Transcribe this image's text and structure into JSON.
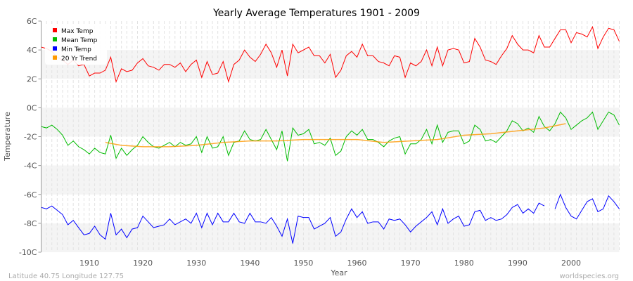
{
  "chart_data": {
    "type": "line",
    "title": "Yearly Average Temperatures 1901 - 2009",
    "xlabel": "Year",
    "ylabel": "Temperature",
    "xlim": [
      1901,
      2009
    ],
    "ylim": [
      -10,
      6
    ],
    "x_ticks": [
      1910,
      1920,
      1930,
      1940,
      1950,
      1960,
      1970,
      1980,
      1990,
      2000
    ],
    "y_ticks": [
      {
        "value": 6,
        "label": "6C"
      },
      {
        "value": 4,
        "label": "4C"
      },
      {
        "value": 2,
        "label": "2C"
      },
      {
        "value": 0,
        "label": "0C"
      },
      {
        "value": -2,
        "label": "-2C"
      },
      {
        "value": -4,
        "label": "-4C"
      },
      {
        "value": -6,
        "label": "-6C"
      },
      {
        "value": -8,
        "label": "-8C"
      },
      {
        "value": -10,
        "label": "-10C"
      }
    ],
    "grid": true,
    "legend_position": "top-left",
    "x_start": 1901,
    "series": [
      {
        "name": "Max Temp",
        "color": "#ff0000",
        "values": [
          4.2,
          4.1,
          3.9,
          3.5,
          3.3,
          3.0,
          3.3,
          2.9,
          3.0,
          2.2,
          2.4,
          2.4,
          2.6,
          3.5,
          1.8,
          2.7,
          2.5,
          2.6,
          3.1,
          3.4,
          2.9,
          2.8,
          2.6,
          3.0,
          3.0,
          2.8,
          3.1,
          2.5,
          3.0,
          3.3,
          2.1,
          3.2,
          2.3,
          2.4,
          3.2,
          1.8,
          3.0,
          3.3,
          4.0,
          3.5,
          3.2,
          3.7,
          4.4,
          3.8,
          2.8,
          4.0,
          2.2,
          4.4,
          3.8,
          4.0,
          4.2,
          3.6,
          3.6,
          3.1,
          3.7,
          2.1,
          2.6,
          3.6,
          3.9,
          3.5,
          4.4,
          3.6,
          3.6,
          3.2,
          3.1,
          2.9,
          3.6,
          3.5,
          2.1,
          3.1,
          2.9,
          3.2,
          4.0,
          2.9,
          4.2,
          2.9,
          4.0,
          4.1,
          4.0,
          3.1,
          3.2,
          4.8,
          4.2,
          3.3,
          3.2,
          3.0,
          3.6,
          4.1,
          5.0,
          4.4,
          4.0,
          4.0,
          3.8,
          5.0,
          4.2,
          4.2,
          4.8,
          5.4,
          5.4,
          4.5,
          5.2,
          5.1,
          4.9,
          5.6,
          4.1,
          4.9,
          5.5,
          5.4,
          4.6
        ]
      },
      {
        "name": "Mean Temp",
        "color": "#00bb00",
        "values": [
          -1.3,
          -1.4,
          -1.2,
          -1.5,
          -1.9,
          -2.6,
          -2.3,
          -2.7,
          -2.9,
          -3.2,
          -2.8,
          -3.1,
          -3.2,
          -1.9,
          -3.5,
          -2.8,
          -3.3,
          -2.9,
          -2.6,
          -2.0,
          -2.4,
          -2.7,
          -2.8,
          -2.6,
          -2.4,
          -2.7,
          -2.4,
          -2.6,
          -2.5,
          -2.0,
          -3.1,
          -2.0,
          -2.8,
          -2.7,
          -2.0,
          -3.3,
          -2.4,
          -2.3,
          -1.6,
          -2.2,
          -2.3,
          -2.2,
          -1.5,
          -2.2,
          -2.9,
          -1.6,
          -3.7,
          -1.4,
          -1.9,
          -1.8,
          -1.5,
          -2.5,
          -2.4,
          -2.6,
          -2.1,
          -3.3,
          -3.0,
          -2.0,
          -1.6,
          -1.9,
          -1.5,
          -2.2,
          -2.2,
          -2.4,
          -2.7,
          -2.3,
          -2.1,
          -2.0,
          -3.2,
          -2.5,
          -2.5,
          -2.2,
          -1.5,
          -2.5,
          -1.2,
          -2.4,
          -1.7,
          -1.6,
          -1.6,
          -2.5,
          -2.3,
          -1.2,
          -1.5,
          -2.3,
          -2.2,
          -2.4,
          -2.0,
          -1.6,
          -0.9,
          -1.1,
          -1.6,
          -1.4,
          -1.7,
          -0.6,
          -1.3,
          -1.6,
          -1.1,
          -0.3,
          -0.7,
          -1.5,
          -1.2,
          -0.9,
          -0.7,
          -0.3,
          -1.5,
          -0.9,
          -0.3,
          -0.5,
          -1.2
        ]
      },
      {
        "name": "Min Temp",
        "color": "#0000ff",
        "values": [
          -6.9,
          -7.0,
          -6.8,
          -7.1,
          -7.4,
          -8.1,
          -7.8,
          -8.3,
          -8.8,
          -8.7,
          -8.2,
          -8.8,
          -9.1,
          -7.3,
          -8.8,
          -8.4,
          -9.0,
          -8.4,
          -8.3,
          -7.5,
          -7.9,
          -8.3,
          -8.2,
          -8.1,
          -7.7,
          -8.1,
          -7.9,
          -7.7,
          -8.0,
          -7.3,
          -8.3,
          -7.3,
          -8.1,
          -7.3,
          -7.9,
          -7.9,
          -7.3,
          -7.9,
          -8.0,
          -7.3,
          -7.9,
          -7.9,
          -8.0,
          -7.6,
          -8.2,
          -8.9,
          -7.7,
          -9.4,
          -7.5,
          -7.6,
          -7.6,
          -8.4,
          -8.2,
          -8.0,
          -7.6,
          -8.9,
          -8.6,
          -7.7,
          -7.0,
          -7.6,
          -7.2,
          -8.0,
          -7.9,
          -7.9,
          -8.4,
          -7.7,
          -7.8,
          -7.7,
          -8.1,
          -8.6,
          -8.2,
          -7.9,
          -7.6,
          -7.2,
          -8.1,
          -7.0,
          -8.0,
          -7.7,
          -7.5,
          -8.2,
          -8.1,
          -7.2,
          -7.1,
          -7.8,
          -7.6,
          -7.8,
          -7.7,
          -7.4,
          -6.9,
          -6.7,
          -7.3,
          -7.0,
          -7.3,
          -6.6,
          -6.8,
          null,
          -7.0,
          -6.0,
          -6.9,
          -7.5,
          -7.7,
          -7.1,
          -6.5,
          -6.3,
          -7.2,
          -7.0,
          -6.1,
          -6.5,
          -7.0
        ]
      },
      {
        "name": "20 Yr Trend",
        "color": "#ff9900",
        "points": [
          [
            1913,
            -2.4
          ],
          [
            1916,
            -2.6
          ],
          [
            1920,
            -2.7
          ],
          [
            1925,
            -2.7
          ],
          [
            1930,
            -2.6
          ],
          [
            1935,
            -2.4
          ],
          [
            1940,
            -2.3
          ],
          [
            1945,
            -2.3
          ],
          [
            1950,
            -2.2
          ],
          [
            1955,
            -2.2
          ],
          [
            1960,
            -2.2
          ],
          [
            1965,
            -2.4
          ],
          [
            1970,
            -2.3
          ],
          [
            1975,
            -2.2
          ],
          [
            1980,
            -1.9
          ],
          [
            1985,
            -1.8
          ],
          [
            1990,
            -1.6
          ],
          [
            1995,
            -1.4
          ],
          [
            1999,
            -1.1
          ]
        ]
      }
    ]
  },
  "footer": {
    "location": "Latitude 40.75 Longitude 127.75",
    "source": "worldspecies.org"
  }
}
